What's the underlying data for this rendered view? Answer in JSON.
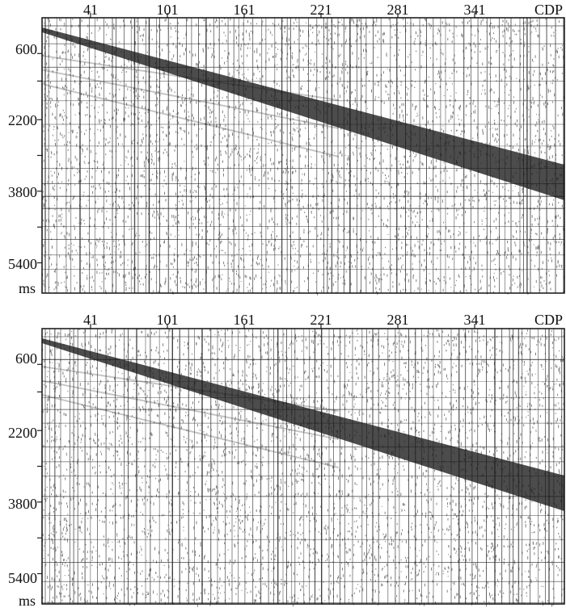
{
  "panels": [
    {
      "id": "top",
      "x_ticks": [
        "41",
        "101",
        "161",
        "221",
        "281",
        "341"
      ],
      "x_axis_label": "CDP",
      "y_ticks": [
        "600",
        "2200",
        "3800",
        "5400"
      ],
      "y_axis_label": "ms"
    },
    {
      "id": "bottom",
      "x_ticks": [
        "41",
        "101",
        "161",
        "221",
        "281",
        "341"
      ],
      "x_axis_label": "CDP",
      "y_ticks": [
        "600",
        "2200",
        "3800",
        "5400"
      ],
      "y_axis_label": "ms"
    }
  ],
  "colors": {
    "trace": "#1a1a1a",
    "grid": "#202020",
    "background": "#ffffff"
  }
}
